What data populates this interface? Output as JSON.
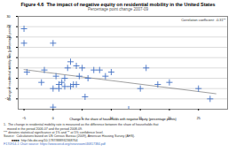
{
  "chart_data": {
    "type": "scatter",
    "title": "Figure 4.6  The impact of negative equity on residential mobility in the United States",
    "subtitle": "Percentage point change 2007-09",
    "xlabel": "Change in the share of households with negative equity (percentage points)",
    "ylabel": "Change in residential mobility rate (percentage points)",
    "x": [
      -2,
      -1.5,
      -5,
      -5,
      -4.5,
      0,
      0,
      0,
      0.5,
      1,
      1.5,
      1,
      2,
      2,
      2.5,
      3,
      3,
      3.5,
      4,
      4,
      4.5,
      5,
      5.5,
      6,
      7,
      8,
      9,
      10,
      13,
      15,
      16,
      18,
      20,
      25,
      27
    ],
    "values": [
      -2,
      4,
      24,
      17,
      3,
      17,
      -14,
      -5,
      1,
      -3,
      -2,
      -5,
      0,
      -4,
      5,
      8,
      -4,
      -3,
      6,
      -3,
      1,
      5,
      -9,
      0,
      4,
      4,
      1,
      3,
      -15,
      -5,
      5,
      -3,
      -2,
      -5,
      -10
    ],
    "color": "#4472C4",
    "marker": "plus",
    "trendline": {
      "x": [
        -5,
        28
      ],
      "values": [
        4.2,
        -7.5
      ],
      "color": "#888888"
    },
    "xlim": [
      -6,
      30
    ],
    "ylim": [
      -15,
      30
    ],
    "xticks": [
      -5,
      0,
      5,
      10,
      15,
      20,
      25
    ],
    "yticks": [
      -10,
      -5,
      0,
      5,
      10,
      15,
      20,
      25,
      30
    ],
    "grid": true,
    "annotations": [
      "Correlation coefficient: -0.31**"
    ],
    "footnotes": [
      "1.  The change in residential mobility rate is measured as the difference between the share of households that",
      "    moved in the period 2006-07 and the period 2008-09.",
      "*** denotes statistical significance at 1% and ** at 5% confidence level.",
      "Source:  Calculations based on US Census Bureau (2009), American Housing Survey (AHS).",
      "         ■■■■  http://dx.doi.org/10.1787/888932368764",
      "F170914-1 Chart source: https://www.oecd.org/newsroom/46817384.pdf"
    ]
  }
}
